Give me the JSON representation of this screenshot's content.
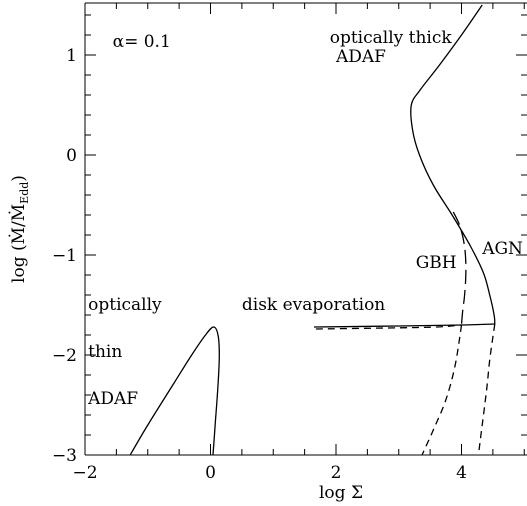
{
  "chart_data": {
    "type": "line",
    "xlabel": "log Σ",
    "ylabel": "log (Ṁ/Ṁ",
    "ylabel_sub": "Edd",
    "ylabel_close": ")",
    "xlim": [
      -2,
      5
    ],
    "ylim": [
      -3,
      1.5
    ],
    "grid": false,
    "x_ticks": [
      -2,
      0,
      2,
      4
    ],
    "x_tick_labels": [
      "−2",
      "0",
      "2",
      "4"
    ],
    "y_ticks": [
      -3,
      -2,
      -1,
      0,
      1
    ],
    "y_tick_labels": [
      "−3",
      "−2",
      "−1",
      "0",
      "1"
    ],
    "annotations": [
      {
        "text": "α=  0.1",
        "x": -1.56,
        "y": 1.08
      },
      {
        "text": "optically thick",
        "x": 1.9,
        "y": 1.12
      },
      {
        "text": "ADAF",
        "x": 2.0,
        "y": 0.93
      },
      {
        "text": "AGN",
        "x": 4.33,
        "y": -0.99
      },
      {
        "text": "GBH",
        "x": 3.27,
        "y": -1.13
      },
      {
        "text": "optically",
        "x": -1.95,
        "y": -1.55
      },
      {
        "text": "disk evaporation",
        "x": 0.5,
        "y": -1.55
      },
      {
        "text": "thin",
        "x": -1.95,
        "y": -2.02
      },
      {
        "text": "ADAF",
        "x": -1.95,
        "y": -2.49
      }
    ],
    "series": [
      {
        "style": "solid",
        "points": [
          [
            -1.28,
            -3.0
          ],
          [
            -1.0,
            -2.7
          ],
          [
            -0.6,
            -2.3
          ],
          [
            -0.3,
            -2.0
          ],
          [
            -0.08,
            -1.8
          ],
          [
            0.05,
            -1.72
          ],
          [
            0.12,
            -1.8
          ],
          [
            0.14,
            -2.0
          ],
          [
            0.12,
            -2.3
          ],
          [
            0.08,
            -2.65
          ],
          [
            0.04,
            -3.0
          ]
        ]
      },
      {
        "style": "solid",
        "points": [
          [
            4.33,
            1.5
          ],
          [
            4.0,
            1.2
          ],
          [
            3.65,
            0.9
          ],
          [
            3.34,
            0.65
          ],
          [
            3.2,
            0.5
          ],
          [
            3.22,
            0.25
          ],
          [
            3.33,
            0.0
          ],
          [
            3.55,
            -0.3
          ],
          [
            3.85,
            -0.6
          ],
          [
            4.15,
            -0.92
          ],
          [
            4.35,
            -1.18
          ],
          [
            4.45,
            -1.4
          ],
          [
            4.52,
            -1.6
          ],
          [
            4.53,
            -1.69
          ]
        ]
      },
      {
        "style": "solid",
        "points": [
          [
            1.65,
            -1.72
          ],
          [
            3.0,
            -1.71
          ],
          [
            4.0,
            -1.7
          ],
          [
            4.53,
            -1.69
          ]
        ]
      },
      {
        "style": "dashed",
        "points": [
          [
            1.68,
            -1.74
          ],
          [
            2.8,
            -1.73
          ],
          [
            3.6,
            -1.72
          ],
          [
            4.0,
            -1.7
          ]
        ]
      },
      {
        "style": "longdash",
        "points": [
          [
            3.87,
            -0.57
          ],
          [
            3.98,
            -0.72
          ],
          [
            4.05,
            -0.92
          ],
          [
            4.07,
            -1.15
          ],
          [
            4.05,
            -1.4
          ],
          [
            4.02,
            -1.55
          ],
          [
            4.0,
            -1.7
          ]
        ]
      },
      {
        "style": "dashed",
        "points": [
          [
            4.0,
            -1.7
          ],
          [
            3.9,
            -2.1
          ],
          [
            3.75,
            -2.45
          ],
          [
            3.55,
            -2.75
          ],
          [
            3.37,
            -3.0
          ]
        ]
      },
      {
        "style": "dashed",
        "points": [
          [
            4.53,
            -1.69
          ],
          [
            4.45,
            -2.05
          ],
          [
            4.4,
            -2.35
          ],
          [
            4.33,
            -2.7
          ],
          [
            4.27,
            -3.0
          ]
        ]
      }
    ]
  }
}
